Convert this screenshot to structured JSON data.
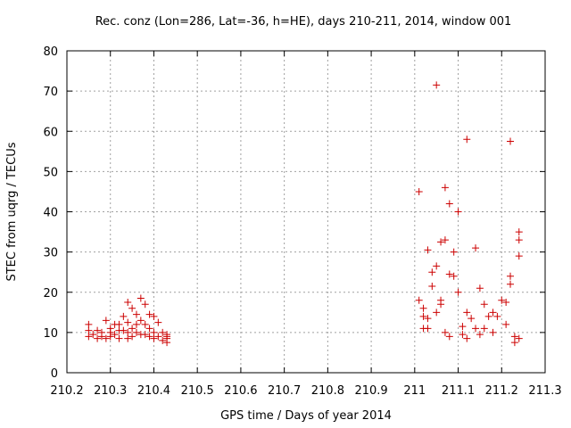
{
  "chart_data": {
    "type": "scatter",
    "title": "Rec. conz (Lon=286, Lat=-36, h=HE), days 210-211, 2014, window 001",
    "xlabel": "GPS time / Days of year 2014",
    "ylabel": "STEC from uqrg / TECUs",
    "xlim": [
      210.2,
      211.3
    ],
    "ylim": [
      0,
      80
    ],
    "xticks": [
      "210.2",
      "210.3",
      "210.4",
      "210.5",
      "210.6",
      "210.7",
      "210.8",
      "210.9",
      "211",
      "211.1",
      "211.2",
      "211.3"
    ],
    "yticks": [
      "0",
      "10",
      "20",
      "30",
      "40",
      "50",
      "60",
      "70",
      "80"
    ],
    "grid": true,
    "marker": "+",
    "color": "#cc0000",
    "x": [
      210.25,
      210.25,
      210.25,
      210.26,
      210.27,
      210.27,
      210.28,
      210.28,
      210.29,
      210.29,
      210.3,
      210.3,
      210.3,
      210.31,
      210.31,
      210.32,
      210.32,
      210.32,
      210.33,
      210.33,
      210.34,
      210.34,
      210.34,
      210.34,
      210.35,
      210.35,
      210.35,
      210.36,
      210.36,
      210.36,
      210.37,
      210.37,
      210.37,
      210.38,
      210.38,
      210.38,
      210.39,
      210.39,
      210.39,
      210.4,
      210.4,
      210.4,
      210.41,
      210.41,
      210.42,
      210.42,
      210.43,
      210.43,
      210.43,
      210.43,
      211.01,
      211.01,
      211.02,
      211.02,
      211.02,
      211.03,
      211.03,
      211.03,
      211.04,
      211.04,
      211.05,
      211.05,
      211.05,
      211.06,
      211.06,
      211.06,
      211.07,
      211.07,
      211.08,
      211.08,
      211.09,
      211.09,
      211.1,
      211.1,
      211.11,
      211.11,
      211.12,
      211.12,
      211.13,
      211.14,
      211.14,
      211.15,
      211.15,
      211.16,
      211.16,
      211.17,
      211.18,
      211.18,
      211.19,
      211.2,
      211.21,
      211.21,
      211.22,
      211.22,
      211.22,
      211.23,
      211.23,
      211.24,
      211.24,
      211.24,
      211.24,
      211.07,
      211.08,
      211.12
    ],
    "y": [
      12,
      10.5,
      9,
      9.5,
      10.5,
      8.5,
      10,
      9,
      13,
      8.5,
      10,
      11,
      9,
      12,
      9.5,
      10.5,
      12,
      8.5,
      14,
      10.5,
      17.5,
      12.5,
      10,
      8.5,
      16,
      11,
      9,
      14.5,
      12,
      10,
      18.5,
      13,
      9.5,
      17,
      12,
      9.5,
      14.5,
      11,
      9,
      14,
      10,
      8.5,
      12.5,
      9,
      10,
      8,
      9.5,
      8.5,
      7.5,
      9,
      45,
      18,
      16,
      14,
      11,
      30.5,
      13.5,
      11,
      25,
      21.5,
      71.5,
      26.5,
      15,
      32.5,
      18,
      17,
      46,
      33,
      24.5,
      42,
      30,
      24,
      40,
      20,
      11.5,
      9.5,
      58,
      15,
      13.5,
      31,
      11,
      21,
      9.5,
      17,
      11,
      14,
      15,
      10,
      14,
      18,
      17.5,
      12,
      24,
      22,
      57.5,
      9,
      7.5,
      35,
      33,
      29,
      8.5,
      10,
      9,
      8.5
    ]
  }
}
